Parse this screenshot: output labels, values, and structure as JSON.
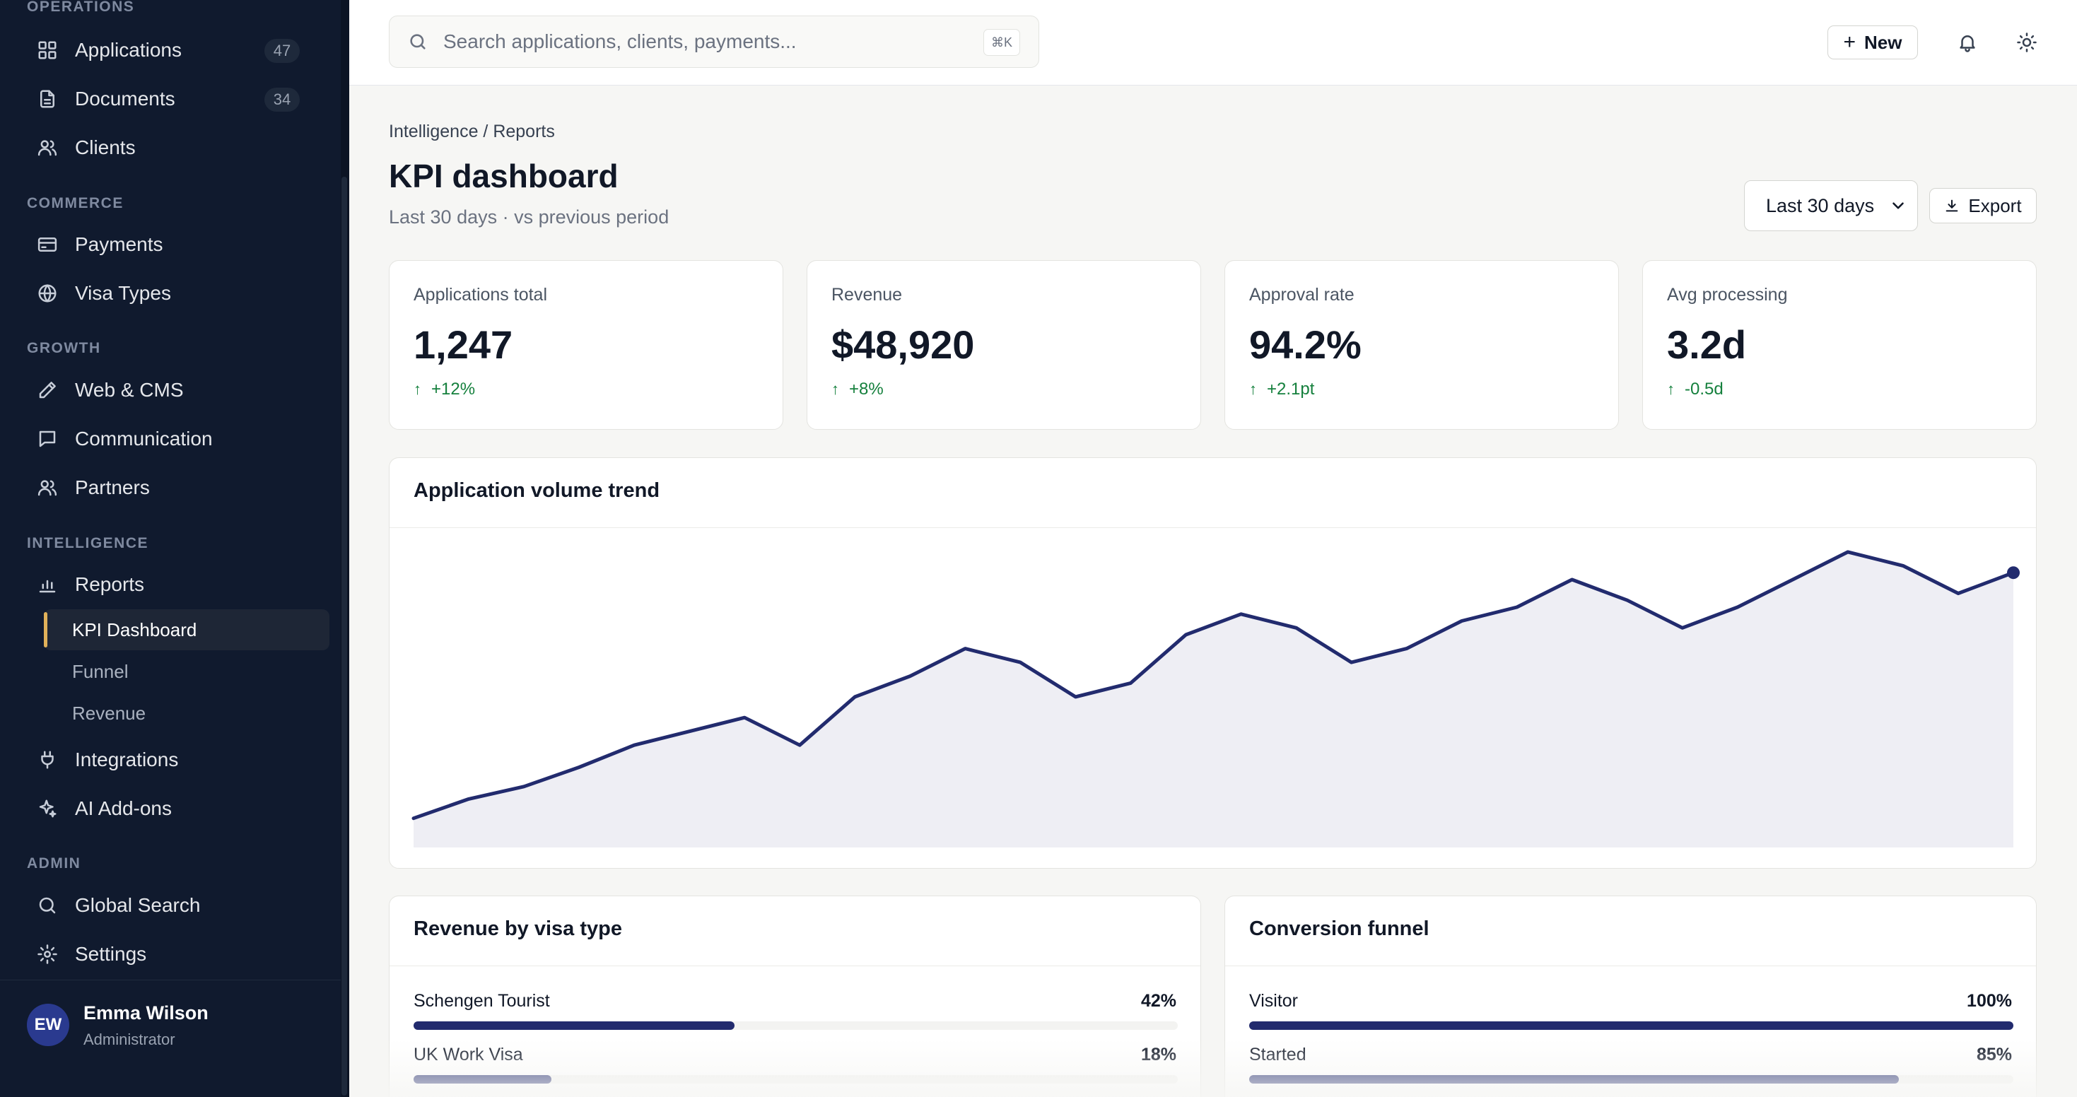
{
  "sidebar": {
    "sections": {
      "operations": "OPERATIONS",
      "commerce": "COMMERCE",
      "growth": "GROWTH",
      "intelligence": "INTELLIGENCE",
      "admin": "ADMIN"
    },
    "items": {
      "applications": {
        "label": "Applications",
        "badge": "47",
        "icon": "grid-icon"
      },
      "documents": {
        "label": "Documents",
        "badge": "34",
        "icon": "document-icon"
      },
      "clients": {
        "label": "Clients",
        "icon": "users-icon"
      },
      "payments": {
        "label": "Payments",
        "icon": "credit-card-icon"
      },
      "visa_types": {
        "label": "Visa Types",
        "icon": "globe-icon"
      },
      "web_cms": {
        "label": "Web & CMS",
        "icon": "pencil-icon"
      },
      "communication": {
        "label": "Communication",
        "icon": "chat-icon"
      },
      "partners": {
        "label": "Partners",
        "icon": "users-icon"
      },
      "reports": {
        "label": "Reports",
        "icon": "bar-chart-icon"
      },
      "integrations": {
        "label": "Integrations",
        "icon": "plug-icon"
      },
      "ai_addons": {
        "label": "AI Add-ons",
        "icon": "sparkles-icon"
      },
      "global_search": {
        "label": "Global Search",
        "icon": "search-icon"
      },
      "settings": {
        "label": "Settings",
        "icon": "gear-icon"
      }
    },
    "sub_items": {
      "kpi_dashboard": "KPI Dashboard",
      "funnel": "Funnel",
      "revenue": "Revenue"
    },
    "user": {
      "initials": "EW",
      "name": "Emma Wilson",
      "role": "Administrator"
    }
  },
  "topbar": {
    "search_placeholder": "Search applications, clients, payments...",
    "shortcut": "⌘K",
    "new_label": "New"
  },
  "header": {
    "breadcrumb": "Intelligence / Reports",
    "title": "KPI dashboard",
    "subtitle": "Last 30 days · vs previous period",
    "period": "Last 30 days",
    "export_label": "Export"
  },
  "kpis": [
    {
      "label": "Applications total",
      "value": "1,247",
      "delta": "+12%"
    },
    {
      "label": "Revenue",
      "value": "$48,920",
      "delta": "+8%"
    },
    {
      "label": "Approval rate",
      "value": "94.2%",
      "delta": "+2.1pt"
    },
    {
      "label": "Avg processing",
      "value": "3.2d",
      "delta": "-0.5d"
    }
  ],
  "colors": {
    "accent": "#222b6e",
    "positive": "#15803d",
    "active_marker": "#e0b15a",
    "area_fill": "#eeeef4"
  },
  "chart_data": {
    "type": "area",
    "title": "Application volume trend",
    "x": [
      1,
      2,
      3,
      4,
      5,
      6,
      7,
      8,
      9,
      10,
      11,
      12,
      13,
      14,
      15,
      16,
      17,
      18,
      19,
      20,
      21,
      22,
      23,
      24,
      25,
      26,
      27,
      28,
      29,
      30
    ],
    "values": [
      15,
      29,
      38,
      52,
      68,
      78,
      88,
      68,
      103,
      118,
      138,
      128,
      103,
      113,
      148,
      163,
      153,
      128,
      138,
      158,
      168,
      188,
      173,
      153,
      168,
      188,
      208,
      198,
      178,
      193
    ],
    "ylim": [
      0,
      210
    ],
    "grid": false,
    "legend": "none"
  },
  "revenue_by_visa": {
    "title": "Revenue by visa type",
    "rows": [
      {
        "label": "Schengen Tourist",
        "pct_label": "42%",
        "value": 42
      },
      {
        "label": "UK Work Visa",
        "pct_label": "18%",
        "value": 18
      }
    ]
  },
  "funnel": {
    "title": "Conversion funnel",
    "rows": [
      {
        "label": "Visitor",
        "pct_label": "100%",
        "value": 100
      },
      {
        "label": "Started",
        "pct_label": "85%",
        "value": 85
      }
    ]
  }
}
